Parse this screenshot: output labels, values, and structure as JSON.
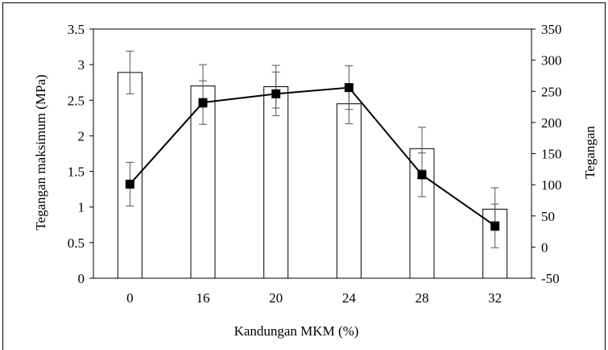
{
  "chart_data": {
    "type": "bar",
    "categories": [
      "0",
      "16",
      "20",
      "24",
      "28",
      "32"
    ],
    "xlabel": "Kandungan MKM (%)",
    "ylabel": "Tegangan maksimum (MPa)",
    "y2label": "Tegangan",
    "ylim": [
      0,
      3.5
    ],
    "y_ticks": [
      "0",
      "0.5",
      "1",
      "1.5",
      "2",
      "2.5",
      "3",
      "3.5"
    ],
    "y2lim": [
      -50,
      350
    ],
    "y2_ticks": [
      "-50",
      "0",
      "50",
      "100",
      "150",
      "200",
      "250",
      "300",
      "350"
    ],
    "grid": false,
    "series": [
      {
        "type": "bar",
        "axis": "left",
        "values": [
          2.89,
          2.7,
          2.69,
          2.45,
          1.82,
          0.97
        ],
        "error": [
          0.3,
          0.3,
          0.3,
          0.28,
          0.3,
          0.3
        ],
        "color": "#ffffff",
        "stroke": "#000000"
      },
      {
        "type": "line",
        "axis": "right",
        "values": [
          101,
          232,
          246,
          256,
          116,
          34
        ],
        "error": [
          35,
          35,
          35,
          35,
          35,
          35
        ],
        "color": "#000000",
        "marker": "square"
      }
    ]
  }
}
